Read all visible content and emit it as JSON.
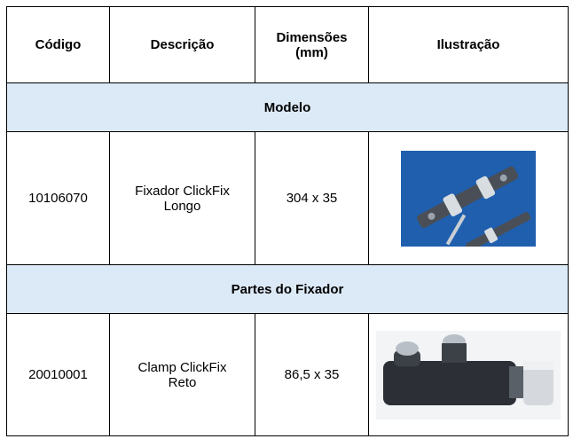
{
  "table": {
    "header": [
      "Código",
      "Descrição",
      "Dimensões (mm)",
      "Ilustração"
    ],
    "sections": [
      {
        "title": "Modelo",
        "rows": [
          [
            "10106070",
            "Fixador ClickFix Longo",
            "304 x 35"
          ]
        ]
      },
      {
        "title": "Partes do Fixador",
        "rows": [
          [
            "20010001",
            "Clamp ClickFix Reto",
            "86,5 x 35"
          ]
        ]
      }
    ]
  }
}
